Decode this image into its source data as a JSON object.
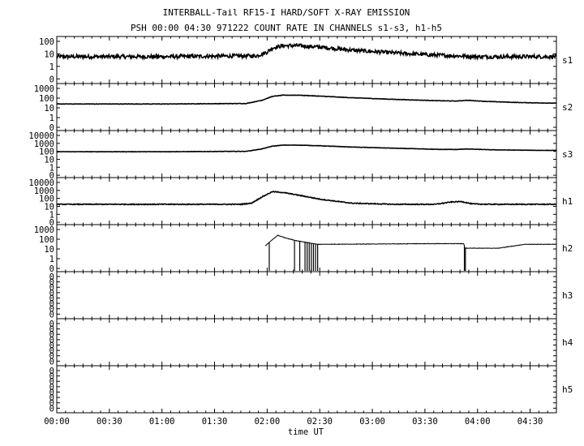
{
  "title_line1": "INTERBALL-Tail RF15-I HARD/SOFT X-RAY EMISSION",
  "title_line2": "PSH 00:00 04:30 971222  COUNT RATE IN CHANNELS s1-s3, h1-h5",
  "chart_data": {
    "type": "line",
    "title": "INTERBALL-Tail RF15-I HARD/SOFT X-RAY EMISSION",
    "subtitle": "PSH 00:00 04:30 971222  COUNT RATE IN CHANNELS s1-s3, h1-h5",
    "xlabel": "time UT",
    "x_tick_labels": [
      "00:00",
      "00:30",
      "01:00",
      "01:30",
      "02:00",
      "02:30",
      "03:00",
      "03:30",
      "04:00",
      "04:30"
    ],
    "x_range_hours": [
      0,
      4.75
    ],
    "y_scale": "log",
    "panels": [
      {
        "name": "s1",
        "y_tick_labels": [
          "100",
          "10",
          "1",
          "0"
        ],
        "ylim": [
          1,
          100
        ],
        "x_hours": [
          0,
          1.0,
          1.9,
          2.0,
          2.05,
          2.15,
          2.3,
          2.5,
          2.8,
          3.2,
          3.6,
          4.0,
          4.4,
          4.75
        ],
        "values": [
          6,
          6,
          7,
          14,
          30,
          45,
          45,
          35,
          20,
          12,
          8,
          6,
          6,
          6
        ]
      },
      {
        "name": "s2",
        "y_tick_labels": [
          "1000",
          "100",
          "10",
          "1",
          "0"
        ],
        "ylim": [
          1,
          1000
        ],
        "x_hours": [
          0,
          1.0,
          1.8,
          1.95,
          2.05,
          2.15,
          2.3,
          2.5,
          2.8,
          3.2,
          3.6,
          3.8,
          3.9,
          4.1,
          4.4,
          4.75
        ],
        "values": [
          25,
          25,
          28,
          60,
          150,
          200,
          200,
          160,
          110,
          75,
          55,
          50,
          60,
          45,
          35,
          30
        ]
      },
      {
        "name": "s3",
        "y_tick_labels": [
          "10000",
          "1000",
          "100",
          "10",
          "1",
          "0"
        ],
        "ylim": [
          1,
          10000
        ],
        "x_hours": [
          0,
          1.0,
          1.8,
          1.95,
          2.05,
          2.15,
          2.3,
          2.5,
          2.8,
          3.2,
          3.6,
          3.8,
          3.9,
          4.1,
          4.4,
          4.75
        ],
        "values": [
          90,
          90,
          100,
          200,
          450,
          600,
          600,
          500,
          350,
          250,
          180,
          170,
          200,
          160,
          140,
          130
        ]
      },
      {
        "name": "h1",
        "y_tick_labels": [
          "10000",
          "1000",
          "100",
          "10",
          "1",
          "0"
        ],
        "ylim": [
          1,
          10000
        ],
        "x_hours": [
          0,
          1.0,
          1.75,
          1.85,
          1.95,
          2.05,
          2.15,
          2.3,
          2.5,
          2.8,
          3.2,
          3.6,
          3.75,
          3.85,
          3.95,
          4.1,
          4.4,
          4.75
        ],
        "values": [
          18,
          18,
          18,
          25,
          150,
          700,
          550,
          250,
          80,
          25,
          18,
          18,
          35,
          40,
          20,
          18,
          18,
          18
        ]
      },
      {
        "name": "h2",
        "y_tick_labels": [
          "1000",
          "100",
          "10",
          "1",
          "0"
        ],
        "ylim": [
          1,
          1000
        ],
        "x_hours": [
          1.98,
          2.05,
          2.1,
          2.18,
          2.28,
          2.48,
          3.0,
          3.5,
          3.87,
          3.88,
          4.2,
          4.45,
          4.75
        ],
        "values": [
          20,
          90,
          250,
          130,
          70,
          30,
          32,
          35,
          35,
          12,
          12,
          30,
          30
        ]
      },
      {
        "name": "h3",
        "y_tick_labels": [
          "0",
          "0",
          "0",
          "0",
          "0",
          "0",
          "0",
          "0"
        ],
        "values": []
      },
      {
        "name": "h4",
        "y_tick_labels": [
          "0",
          "0",
          "0",
          "0",
          "0",
          "0",
          "0",
          "0"
        ],
        "values": []
      },
      {
        "name": "h5",
        "y_tick_labels": [
          "0",
          "0",
          "0",
          "0",
          "0",
          "0",
          "0",
          "0"
        ],
        "values": []
      }
    ]
  }
}
